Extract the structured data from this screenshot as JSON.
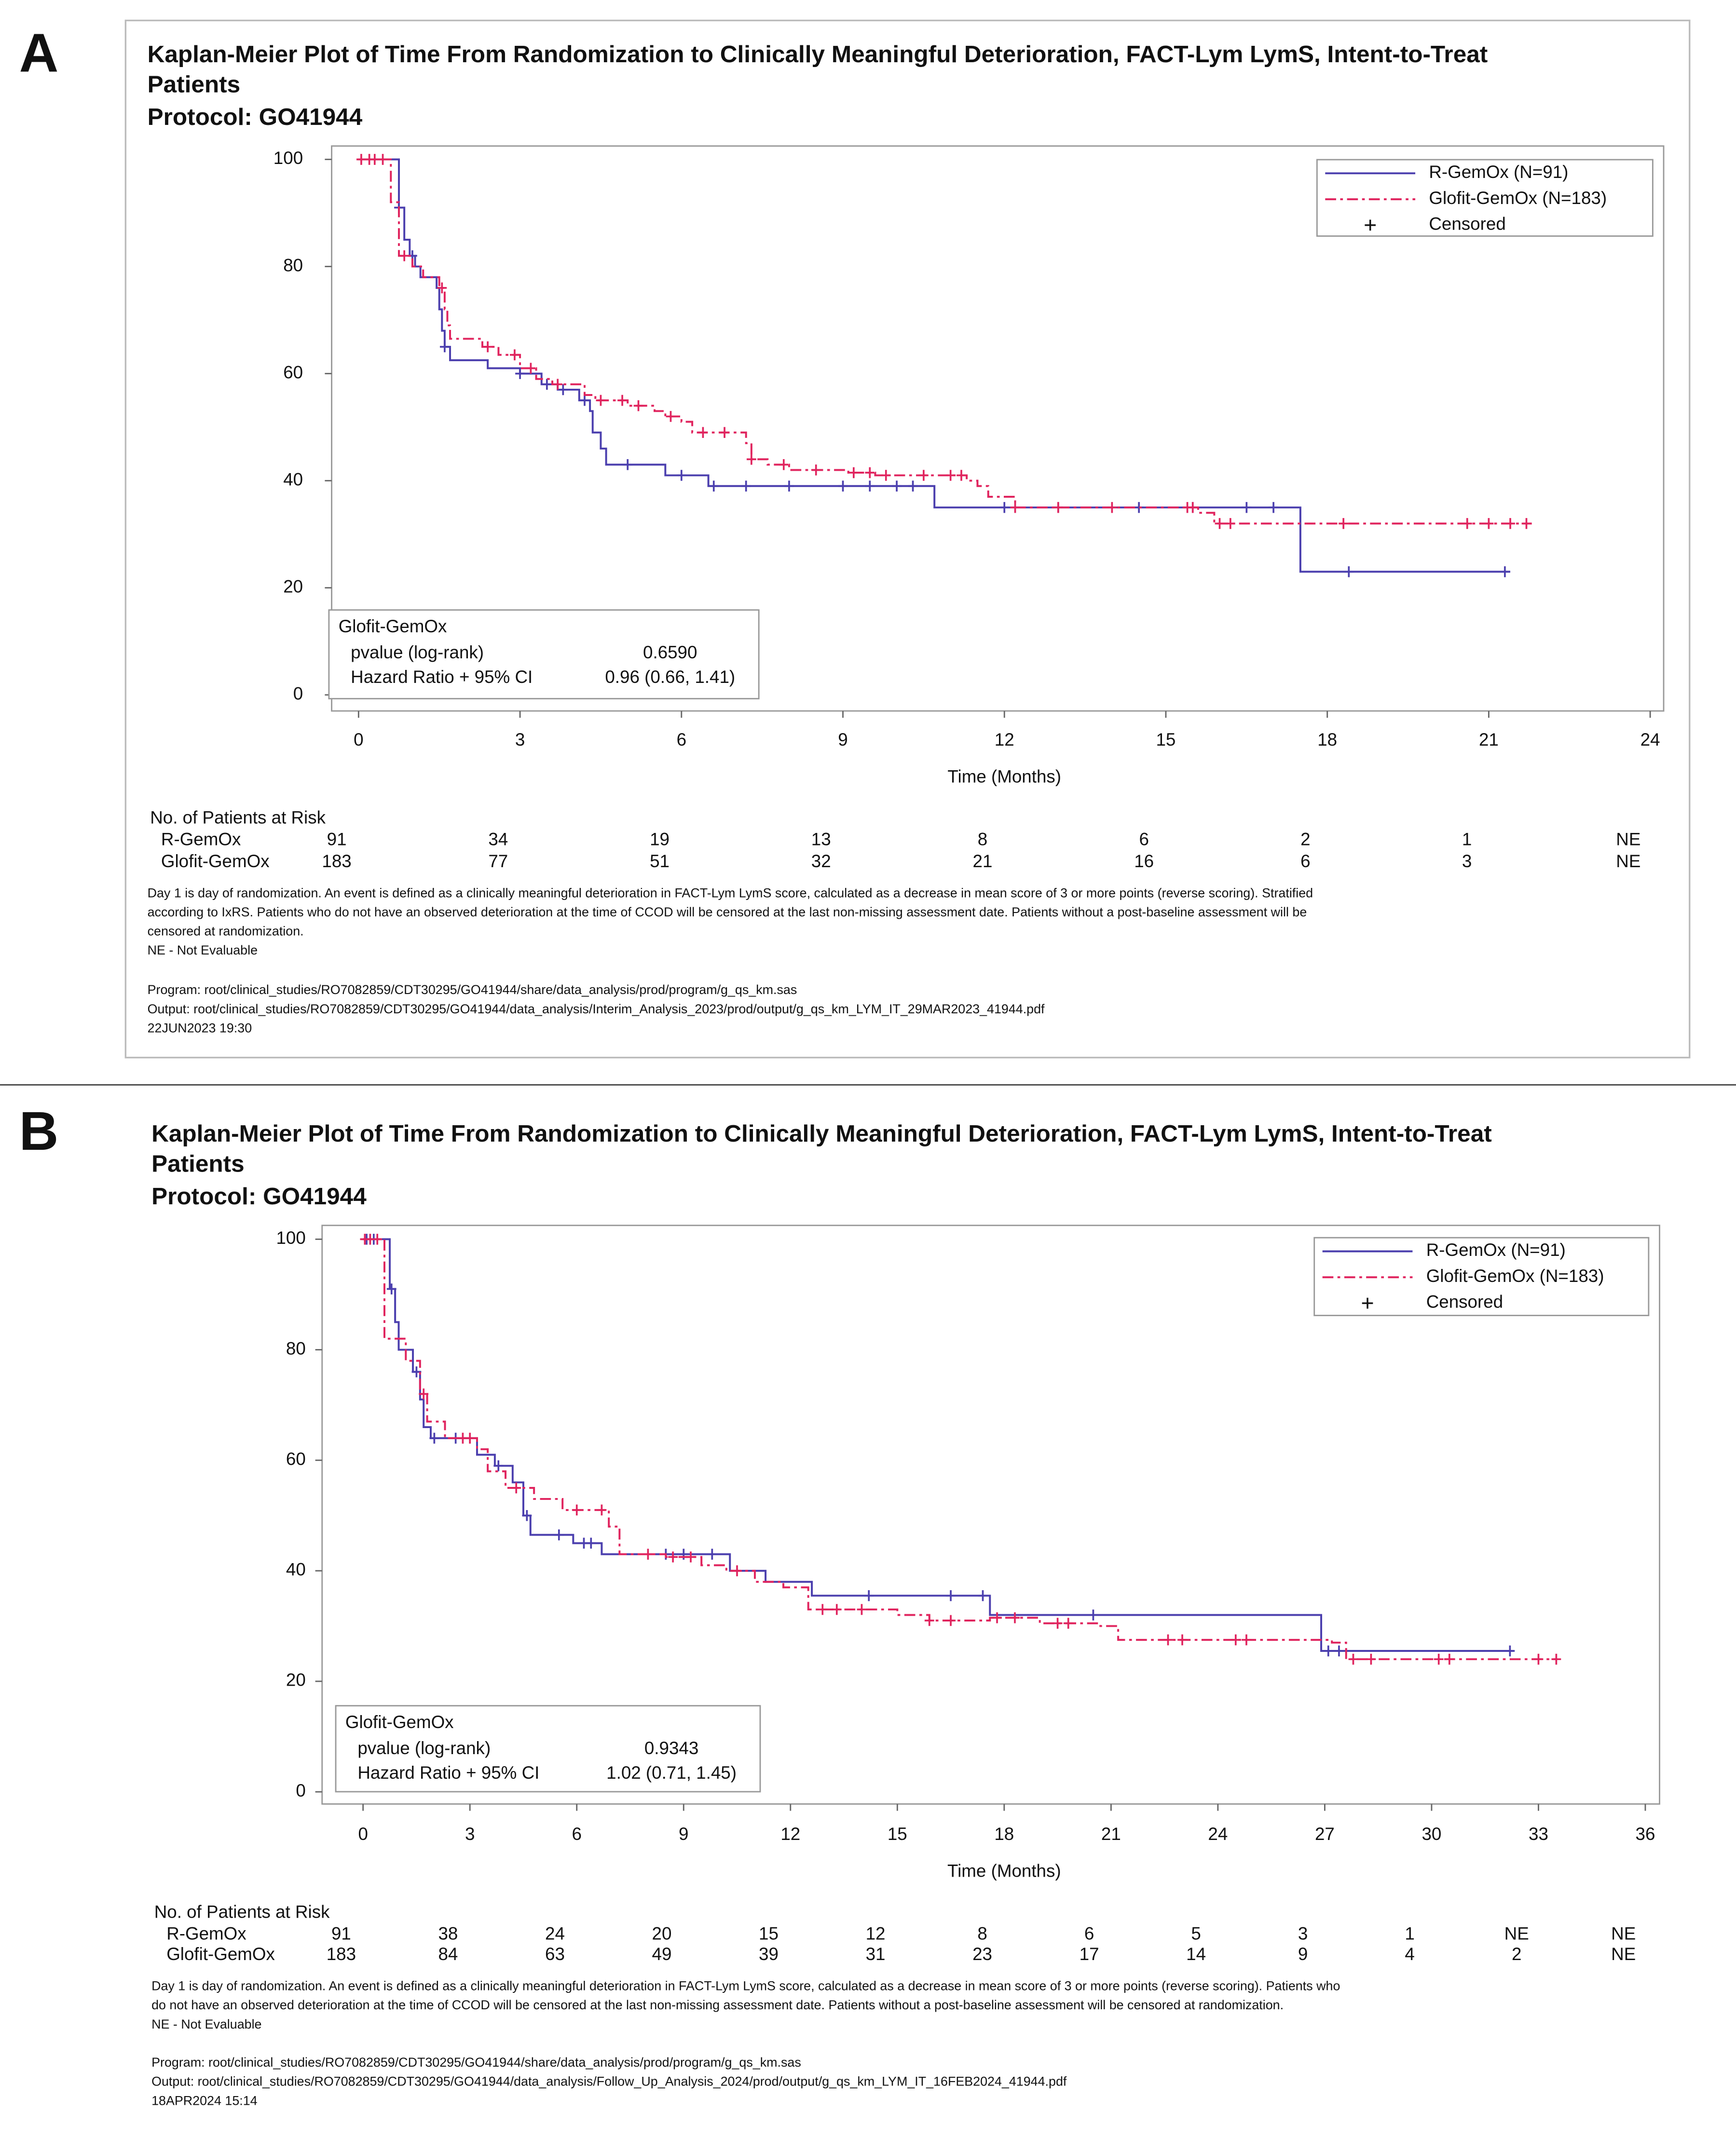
{
  "chart_data": [
    {
      "type": "step",
      "panel": "A",
      "title": [
        "Kaplan-Meier Plot of Time From Randomization to Clinically Meaningful Deterioration, FACT-Lym LymS, Intent-to-Treat",
        "Patients"
      ],
      "protocol": "Protocol: GO41944",
      "x_label": "Time (Months)",
      "xlim": [
        -0.5,
        24.25
      ],
      "xticks": [
        0,
        3,
        6,
        9,
        12,
        15,
        18,
        21,
        24
      ],
      "ylim": [
        -3,
        102.5
      ],
      "yticks": [
        0,
        20,
        40,
        60,
        80,
        100
      ],
      "legend_position": "upper right",
      "censored_label": "Censored",
      "series": [
        {
          "name": "R-GemOx (N=91)",
          "color": "#4b3fae",
          "line_style": "solid",
          "x": [
            0,
            0.75,
            0.85,
            0.95,
            1.05,
            1.15,
            1.45,
            1.5,
            1.55,
            1.6,
            1.7,
            2.4,
            3.0,
            3.4,
            3.7,
            4.1,
            4.3,
            4.35,
            4.5,
            4.6,
            5.7,
            6.5,
            10.7,
            17.5,
            21.4
          ],
          "values": [
            100,
            91,
            85,
            82,
            80,
            78,
            76,
            72,
            68,
            65,
            62.5,
            61,
            60,
            58,
            57,
            55,
            53,
            49,
            46,
            43,
            41,
            39,
            35,
            23,
            23
          ],
          "censored_x": [
            0.75,
            1.0,
            1.6,
            3.0,
            3.5,
            3.8,
            4.2,
            5.0,
            6.0,
            6.6,
            7.2,
            8.0,
            9.0,
            9.5,
            10.0,
            10.3,
            12.0,
            13.0,
            14.5,
            15.5,
            16.5,
            17.0,
            18.4,
            21.3
          ]
        },
        {
          "name": "Glofit-GemOx (N=183)",
          "color": "#e0245e",
          "line_style": "dashdot",
          "x": [
            0,
            0.6,
            0.75,
            1.0,
            1.2,
            1.5,
            1.6,
            1.65,
            1.7,
            2.3,
            2.6,
            3.0,
            3.3,
            3.6,
            4.2,
            4.4,
            5.0,
            5.5,
            5.7,
            6.0,
            6.2,
            7.2,
            7.3,
            7.6,
            8.0,
            9.1,
            9.6,
            11.3,
            11.5,
            11.7,
            12.2,
            15.6,
            15.9,
            21.8
          ],
          "values": [
            100,
            92,
            82,
            80,
            78,
            76,
            72,
            69,
            66.5,
            65,
            63.5,
            61,
            59,
            58,
            56,
            55,
            54,
            53,
            52,
            51,
            49,
            47,
            44,
            43,
            42,
            41.5,
            41,
            40,
            39,
            37,
            35,
            34,
            32,
            32
          ],
          "censored_x": [
            0.05,
            0.2,
            0.3,
            0.45,
            0.85,
            1.55,
            2.4,
            2.9,
            3.2,
            3.7,
            4.5,
            4.9,
            5.2,
            5.8,
            6.4,
            6.8,
            7.3,
            7.9,
            8.5,
            9.2,
            9.5,
            9.8,
            10.5,
            11.0,
            11.2,
            12.2,
            13.0,
            14.0,
            15.4,
            15.5,
            16.0,
            16.2,
            18.3,
            20.6,
            21.0,
            21.4,
            21.7
          ]
        }
      ],
      "stats": {
        "title": "Glofit-GemOx",
        "rows": [
          [
            "pvalue (log-rank)",
            "0.6590"
          ],
          [
            "Hazard Ratio + 95% CI",
            "0.96 (0.66, 1.41)"
          ]
        ]
      },
      "risk_table": {
        "title": "No. of Patients at Risk",
        "rows": [
          {
            "name": "R-GemOx",
            "values": [
              91,
              34,
              19,
              13,
              8,
              6,
              2,
              1,
              "NE"
            ]
          },
          {
            "name": "Glofit-GemOx",
            "values": [
              183,
              77,
              51,
              32,
              21,
              16,
              6,
              3,
              "NE"
            ]
          }
        ]
      },
      "footnotes": [
        "Day 1 is day of randomization. An event is defined as a clinically meaningful deterioration in FACT-Lym LymS score, calculated as a decrease in mean score of 3 or more points (reverse scoring). Stratified",
        "according to IxRS. Patients who do not have an observed deterioration at the time of CCOD will be censored at the last non-missing assessment date. Patients without a post-baseline assessment will be",
        "censored at randomization.",
        "NE - Not Evaluable"
      ],
      "program": [
        "Program: root/clinical_studies/RO7082859/CDT30295/GO41944/share/data_analysis/prod/program/g_qs_km.sas",
        "Output: root/clinical_studies/RO7082859/CDT30295/GO41944/data_analysis/Interim_Analysis_2023/prod/output/g_qs_km_LYM_IT_29MAR2023_41944.pdf",
        "22JUN2023 19:30"
      ]
    },
    {
      "type": "step",
      "panel": "B",
      "title": [
        "Kaplan-Meier Plot of Time From Randomization to Clinically Meaningful Deterioration, FACT-Lym LymS, Intent-to-Treat",
        "Patients"
      ],
      "protocol": "Protocol: GO41944",
      "x_label": "Time (Months)",
      "xlim": [
        -1.15,
        36.4
      ],
      "xticks": [
        0,
        3,
        6,
        9,
        12,
        15,
        18,
        21,
        24,
        27,
        30,
        33,
        36
      ],
      "ylim": [
        -2.2,
        102.5
      ],
      "yticks": [
        0,
        20,
        40,
        60,
        80,
        100
      ],
      "legend_position": "upper right",
      "censored_label": "Censored",
      "series": [
        {
          "name": "R-GemOx (N=91)",
          "color": "#4b3fae",
          "line_style": "solid",
          "x": [
            0,
            0.75,
            0.9,
            1.0,
            1.4,
            1.6,
            1.7,
            1.9,
            3.2,
            3.7,
            4.2,
            4.5,
            4.7,
            5.9,
            6.7,
            10.3,
            11.3,
            12.6,
            17.6,
            26.9,
            32.3
          ],
          "values": [
            100,
            91,
            85,
            80,
            76,
            71,
            66,
            64,
            61,
            59,
            56,
            50,
            46.5,
            45,
            43,
            40,
            38,
            35.5,
            32,
            25.5,
            25.5
          ],
          "censored_x": [
            0.1,
            0.3,
            0.8,
            1.5,
            2.0,
            2.6,
            3.8,
            4.6,
            5.5,
            6.2,
            6.4,
            8.5,
            9.0,
            9.8,
            14.2,
            16.5,
            17.4,
            20.5,
            27.1,
            27.4,
            32.2
          ]
        },
        {
          "name": "Glofit-GemOx (N=183)",
          "color": "#e0245e",
          "line_style": "dashdot",
          "x": [
            0,
            0.6,
            1.2,
            1.6,
            1.8,
            2.3,
            3.2,
            3.5,
            4.0,
            4.8,
            5.6,
            6.9,
            7.2,
            8.5,
            9.5,
            10.2,
            11.0,
            11.8,
            12.5,
            15.0,
            15.9,
            17.6,
            19.0,
            20.7,
            21.2,
            27.2,
            27.6,
            33.5
          ],
          "values": [
            100,
            82,
            78,
            72,
            67,
            64,
            62,
            58,
            55,
            53,
            51,
            48,
            43,
            42.5,
            41,
            40,
            38,
            37,
            33,
            32,
            31,
            31.5,
            30.5,
            30,
            27.5,
            27,
            24,
            24
          ],
          "censored_x": [
            0.05,
            0.2,
            0.4,
            1.7,
            2.8,
            3.0,
            4.3,
            6.0,
            6.7,
            8.0,
            8.7,
            9.2,
            10.5,
            12.9,
            13.3,
            14.0,
            15.9,
            16.5,
            17.8,
            18.3,
            19.5,
            19.8,
            22.6,
            23.0,
            24.5,
            24.8,
            27.8,
            28.3,
            30.2,
            30.5,
            33.0,
            33.5
          ]
        }
      ],
      "stats": {
        "title": "Glofit-GemOx",
        "rows": [
          [
            "pvalue (log-rank)",
            "0.9343"
          ],
          [
            "Hazard Ratio + 95% CI",
            "1.02 (0.71, 1.45)"
          ]
        ]
      },
      "risk_table": {
        "title": "No. of Patients at Risk",
        "rows": [
          {
            "name": "R-GemOx",
            "values": [
              91,
              38,
              24,
              20,
              15,
              12,
              8,
              6,
              5,
              3,
              1,
              "NE",
              "NE"
            ]
          },
          {
            "name": "Glofit-GemOx",
            "values": [
              183,
              84,
              63,
              49,
              39,
              31,
              23,
              17,
              14,
              9,
              4,
              2,
              "NE"
            ]
          }
        ]
      },
      "footnotes": [
        "Day 1 is day of randomization. An event is defined as a clinically meaningful deterioration in FACT-Lym LymS score, calculated as a decrease in mean score of 3 or more points (reverse scoring). Patients who",
        "do not have an observed deterioration at the time of CCOD will be censored at the last non-missing assessment date. Patients without a post-baseline assessment will be censored at randomization.",
        "NE - Not Evaluable"
      ],
      "program": [
        "Program: root/clinical_studies/RO7082859/CDT30295/GO41944/share/data_analysis/prod/program/g_qs_km.sas",
        "Output: root/clinical_studies/RO7082859/CDT30295/GO41944/data_analysis/Follow_Up_Analysis_2024/prod/output/g_qs_km_LYM_IT_16FEB2024_41944.pdf",
        "18APR2024 15:14"
      ]
    }
  ]
}
